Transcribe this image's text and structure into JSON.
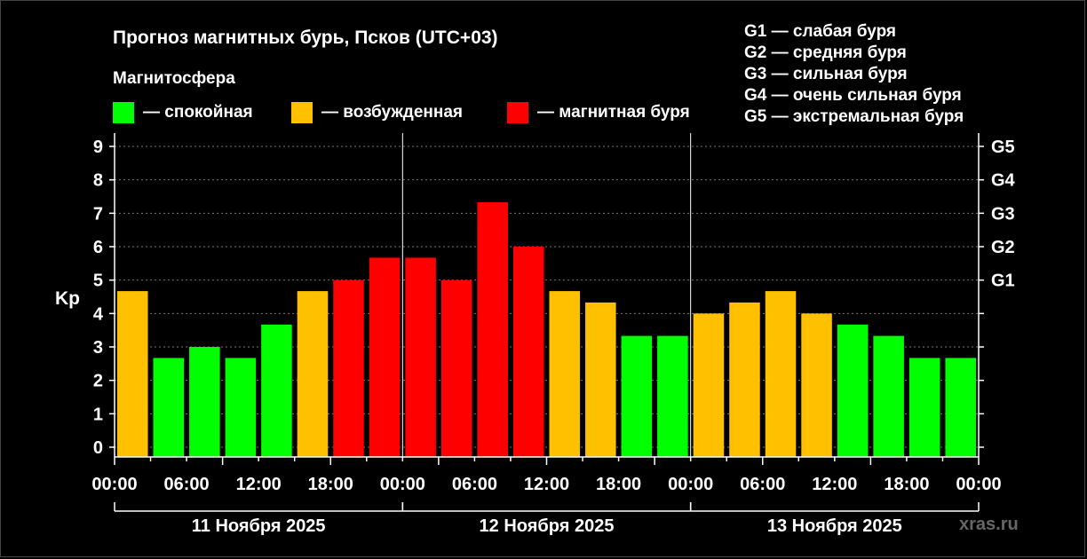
{
  "chart_data": {
    "type": "bar",
    "title": "Прогноз магнитных бурь, Псков (UTC+03)",
    "ylabel": "Kp",
    "ylim": [
      0,
      9
    ],
    "yticks": [
      "0",
      "1",
      "2",
      "3",
      "4",
      "5",
      "6",
      "7",
      "8",
      "9"
    ],
    "g_ticks": [
      {
        "label": "G1",
        "kp": 5
      },
      {
        "label": "G2",
        "kp": 6
      },
      {
        "label": "G3",
        "kp": 7
      },
      {
        "label": "G4",
        "kp": 8
      },
      {
        "label": "G5",
        "kp": 9
      }
    ],
    "xtick_labels": [
      "00:00",
      "06:00",
      "12:00",
      "18:00",
      "00:00",
      "06:00",
      "12:00",
      "18:00",
      "00:00",
      "06:00",
      "12:00",
      "18:00",
      "00:00"
    ],
    "days": [
      "11 Ноября 2025",
      "12 Ноября 2025",
      "13 Ноября 2025"
    ],
    "values": [
      4.67,
      2.67,
      3.0,
      2.67,
      3.67,
      4.67,
      5.0,
      5.67,
      5.67,
      5.0,
      7.33,
      6.0,
      4.67,
      4.33,
      3.33,
      3.33,
      4.0,
      4.33,
      4.67,
      4.0,
      3.67,
      3.33,
      2.67,
      2.67
    ],
    "levels": [
      "excited",
      "calm",
      "calm",
      "calm",
      "calm",
      "excited",
      "storm",
      "storm",
      "storm",
      "storm",
      "storm",
      "storm",
      "excited",
      "excited",
      "calm",
      "calm",
      "excited",
      "excited",
      "excited",
      "excited",
      "calm",
      "calm",
      "calm",
      "calm"
    ],
    "colors": {
      "calm": "#00ff00",
      "excited": "#ffc000",
      "storm": "#ff0000"
    },
    "legend": {
      "title": "Магнитосфера",
      "items": [
        {
          "key": "calm",
          "label": "— спокойная"
        },
        {
          "key": "excited",
          "label": "— возбужденная"
        },
        {
          "key": "storm",
          "label": "— магнитная буря"
        }
      ]
    },
    "g_legend": [
      "G1 — слабая буря",
      "G2 — средняя буря",
      "G3 — сильная буря",
      "G4 — очень сильная буря",
      "G5 — экстремальная буря"
    ],
    "grid": true
  },
  "watermark": "xras.ru"
}
